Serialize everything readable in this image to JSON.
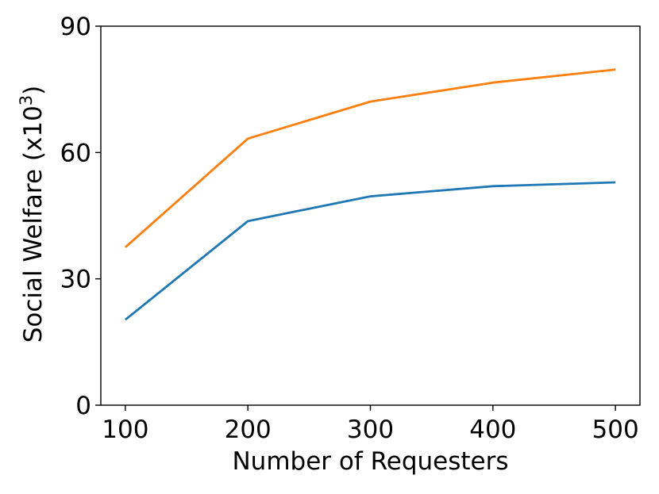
{
  "chart_data": {
    "type": "line",
    "title": "",
    "xlabel": "Number of Requesters",
    "ylabel": {
      "text": "Social Welfare (x10",
      "superscript": "3",
      "suffix": ")"
    },
    "x": [
      100,
      200,
      300,
      400,
      500
    ],
    "xticks": [
      100,
      200,
      300,
      400,
      500
    ],
    "yticks": [
      0,
      30,
      60,
      90
    ],
    "xlim": [
      80,
      520
    ],
    "ylim": [
      0,
      90
    ],
    "grid": false,
    "series": [
      {
        "color": "#1f77b4",
        "values": [
          20.3,
          43.7,
          49.6,
          52.0,
          52.9
        ]
      },
      {
        "color": "#ff7f0e",
        "values": [
          37.5,
          63.3,
          72.1,
          76.6,
          79.7
        ]
      }
    ]
  }
}
